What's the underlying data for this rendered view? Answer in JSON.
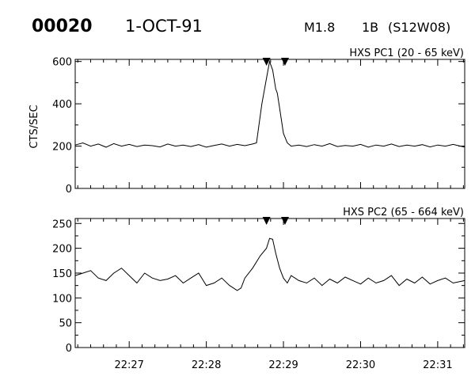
{
  "header": {
    "event_id": "00020",
    "date": "1-OCT-91",
    "flare_class": "M1.8",
    "optical_class": "1B",
    "location": "(S12W08)"
  },
  "colors": {
    "line": "#000000",
    "background": "#ffffff"
  },
  "chart_data": [
    {
      "type": "line",
      "title": "HXS PC1 (20 - 65 keV)",
      "ylabel": "CTS/SEC",
      "xlabel": "",
      "ylim": [
        0,
        610
      ],
      "yticks": [
        0,
        200,
        400,
        600
      ],
      "xticks": [
        "22:27",
        "22:28",
        "22:29",
        "22:30",
        "22:31"
      ],
      "x_unit": "minutes after 22:00",
      "xlim": [
        26.3,
        31.35
      ],
      "grid": false,
      "markers": [
        28.78,
        29.02
      ],
      "series": [
        {
          "x": [
            26.3,
            26.4,
            26.5,
            26.6,
            26.7,
            26.8,
            26.9,
            27.0,
            27.1,
            27.2,
            27.3,
            27.4,
            27.5,
            27.6,
            27.7,
            27.8,
            27.9,
            28.0,
            28.1,
            28.2,
            28.3,
            28.4,
            28.5,
            28.6,
            28.65,
            28.72,
            28.78,
            28.82,
            28.86,
            28.9,
            28.92,
            28.95,
            29.0,
            29.05,
            29.1,
            29.2,
            29.3,
            29.4,
            29.5,
            29.6,
            29.7,
            29.8,
            29.9,
            30.0,
            30.1,
            30.2,
            30.3,
            30.4,
            30.5,
            30.6,
            30.7,
            30.8,
            30.9,
            31.0,
            31.1,
            31.2,
            31.35
          ],
          "y": [
            205,
            215,
            200,
            210,
            195,
            212,
            200,
            208,
            198,
            205,
            202,
            196,
            210,
            200,
            205,
            198,
            207,
            195,
            203,
            210,
            200,
            208,
            202,
            210,
            215,
            400,
            520,
            600,
            560,
            470,
            450,
            380,
            260,
            215,
            200,
            205,
            198,
            207,
            200,
            212,
            198,
            203,
            200,
            208,
            195,
            205,
            200,
            210,
            198,
            205,
            200,
            207,
            196,
            205,
            200,
            208,
            195
          ]
        }
      ]
    },
    {
      "type": "line",
      "title": "HXS PC2 (65 - 664 keV)",
      "ylabel": "",
      "xlabel": "",
      "ylim": [
        0,
        260
      ],
      "yticks": [
        0,
        50,
        100,
        150,
        200,
        250
      ],
      "xticks": [
        "22:27",
        "22:28",
        "22:29",
        "22:30",
        "22:31"
      ],
      "x_unit": "minutes after 22:00",
      "xlim": [
        26.3,
        31.35
      ],
      "grid": false,
      "markers": [
        28.78,
        29.02
      ],
      "series": [
        {
          "x": [
            26.3,
            26.4,
            26.5,
            26.6,
            26.7,
            26.8,
            26.9,
            27.0,
            27.1,
            27.2,
            27.3,
            27.4,
            27.5,
            27.6,
            27.7,
            27.8,
            27.9,
            28.0,
            28.1,
            28.2,
            28.3,
            28.4,
            28.45,
            28.5,
            28.6,
            28.7,
            28.78,
            28.82,
            28.86,
            28.9,
            28.95,
            29.0,
            29.05,
            29.1,
            29.2,
            29.3,
            29.4,
            29.5,
            29.6,
            29.7,
            29.8,
            29.9,
            30.0,
            30.1,
            30.2,
            30.3,
            30.4,
            30.5,
            30.6,
            30.7,
            30.8,
            30.9,
            31.0,
            31.1,
            31.2,
            31.35
          ],
          "y": [
            145,
            150,
            155,
            140,
            135,
            150,
            160,
            145,
            130,
            150,
            140,
            135,
            138,
            145,
            130,
            140,
            150,
            125,
            130,
            140,
            125,
            115,
            120,
            140,
            160,
            185,
            200,
            220,
            218,
            190,
            160,
            140,
            130,
            145,
            135,
            130,
            140,
            125,
            138,
            130,
            142,
            135,
            128,
            140,
            130,
            135,
            145,
            125,
            138,
            130,
            142,
            128,
            135,
            140,
            130,
            135
          ]
        }
      ]
    }
  ]
}
